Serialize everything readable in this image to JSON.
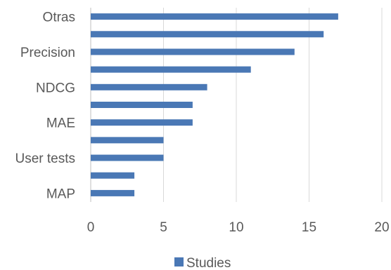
{
  "chart_data": {
    "type": "bar",
    "orientation": "horizontal",
    "categories": [
      "Otras",
      "",
      "Precision",
      "",
      "NDCG",
      "",
      "MAE",
      "",
      "User tests",
      "",
      "MAP"
    ],
    "series": [
      {
        "name": "Studies",
        "values": [
          17,
          16,
          14,
          11,
          8,
          7,
          7,
          5,
          5,
          3,
          3
        ]
      }
    ],
    "xlim": [
      0,
      20
    ],
    "xticks": [
      0,
      5,
      10,
      15,
      20
    ],
    "grid": "vertical",
    "legend": "bottom",
    "color": "#4a78b5",
    "title": "",
    "xlabel": "",
    "ylabel": ""
  }
}
